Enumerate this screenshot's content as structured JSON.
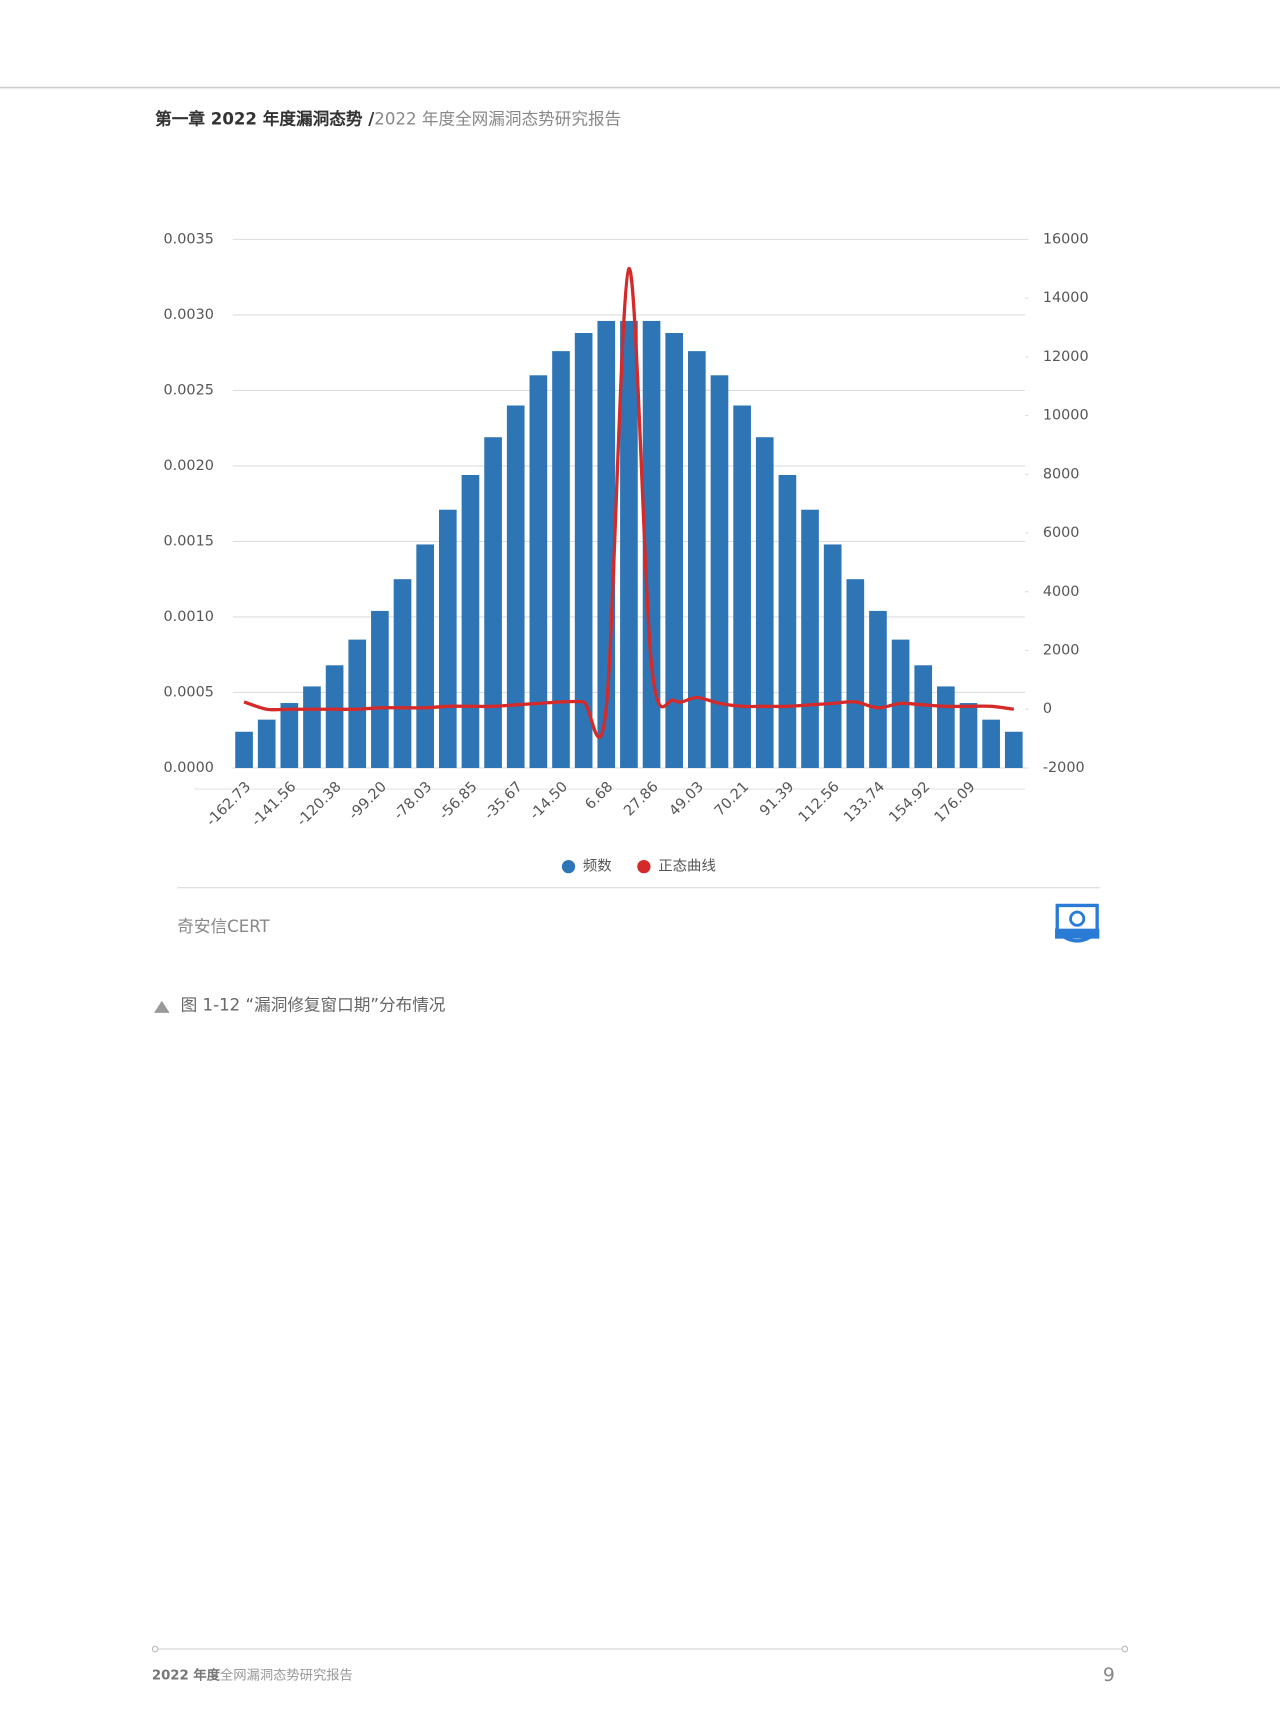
{
  "header": {
    "chapter": "第一章 2022 年度漏洞态势 /",
    "report": "2022 年度全网漏洞态势研究报告"
  },
  "chart_data": {
    "type": "bar",
    "categories": [
      "-162.73",
      null,
      "-141.56",
      null,
      "-120.38",
      null,
      "-99.20",
      null,
      "-78.03",
      null,
      "-56.85",
      null,
      "-35.67",
      null,
      "-14.50",
      null,
      "6.68",
      null,
      "27.86",
      null,
      "49.03",
      null,
      "70.21",
      null,
      "91.39",
      null,
      "112.56",
      null,
      "133.74",
      null,
      "154.92",
      null,
      "176.09",
      null,
      null
    ],
    "series": [
      {
        "name": "频数",
        "type": "bar",
        "color": "#2e75b6",
        "values": [
          0.00024,
          0.00032,
          0.00043,
          0.00054,
          0.00068,
          0.00085,
          0.00104,
          0.00125,
          0.00148,
          0.00171,
          0.00194,
          0.00219,
          0.0024,
          0.0026,
          0.00276,
          0.00288,
          0.00296,
          0.00296,
          0.00296,
          0.00288,
          0.00276,
          0.0026,
          0.0024,
          0.00219,
          0.00194,
          0.00171,
          0.00148,
          0.00125,
          0.00104,
          0.00085,
          0.00068,
          0.00054,
          0.00043,
          0.00032,
          0.00024
        ]
      },
      {
        "name": "正态曲线",
        "type": "line",
        "axis": "y2",
        "color": "#d42a2a",
        "values": [
          250,
          0,
          0,
          0,
          0,
          0,
          50,
          50,
          50,
          100,
          100,
          100,
          150,
          200,
          250,
          250,
          50,
          15000,
          1500,
          300,
          400,
          200,
          100,
          100,
          100,
          150,
          200,
          250,
          50,
          200,
          150,
          100,
          100,
          100,
          0
        ]
      }
    ],
    "ylim": [
      0,
      0.0035
    ],
    "yticks": [
      {
        "value": 0,
        "label": "0.0000"
      },
      {
        "value": 0.0005,
        "label": "0.0005"
      },
      {
        "value": 0.001,
        "label": "0.0010"
      },
      {
        "value": 0.0015,
        "label": "0.0015"
      },
      {
        "value": 0.002,
        "label": "0.0020"
      },
      {
        "value": 0.0025,
        "label": "0.0025"
      },
      {
        "value": 0.003,
        "label": "0.0030"
      },
      {
        "value": 0.0035,
        "label": "0.0035"
      }
    ],
    "y2lim": [
      -2000,
      16000
    ],
    "y2ticks": [
      -2000,
      0,
      2000,
      4000,
      6000,
      8000,
      10000,
      12000,
      14000,
      16000
    ],
    "grid": true,
    "legend": "bottom",
    "source": "奇安信CERT"
  },
  "caption": "图 1-12 “漏洞修复窗口期”分布情况",
  "footer": {
    "bold": "2022 年度",
    "text": "全网漏洞态势研究报告",
    "page": 9
  }
}
